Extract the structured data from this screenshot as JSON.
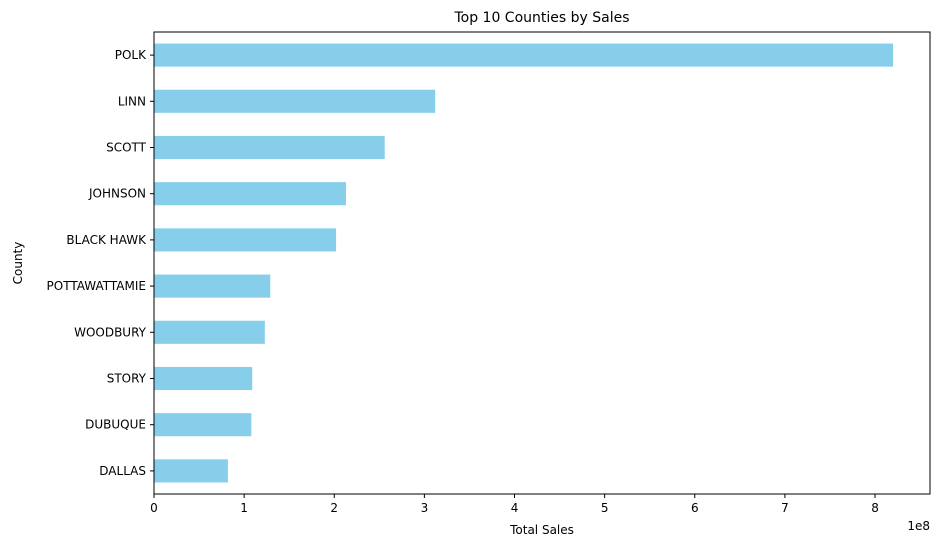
{
  "chart_data": {
    "type": "bar",
    "orientation": "horizontal",
    "title": "Top 10 Counties by Sales",
    "xlabel": "Total Sales",
    "ylabel": "County",
    "x_offset_label": "1e8",
    "categories": [
      "POLK",
      "LINN",
      "SCOTT",
      "JOHNSON",
      "BLACK HAWK",
      "POTTAWATTAMIE",
      "WOODBURY",
      "STORY",
      "DUBUQUE",
      "DALLAS"
    ],
    "values": [
      820000000,
      312000000,
      256000000,
      213000000,
      202000000,
      129000000,
      123000000,
      109000000,
      108000000,
      82000000
    ],
    "x_ticks": [
      0,
      1,
      2,
      3,
      4,
      5,
      6,
      7,
      8
    ],
    "x_tick_scale": 100000000,
    "xlim": [
      0,
      861000000
    ],
    "bar_color": "#87ceeb",
    "grid": false
  }
}
